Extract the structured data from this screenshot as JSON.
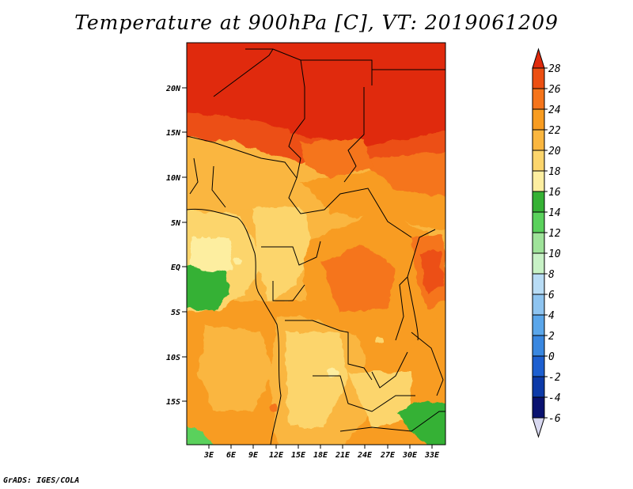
{
  "title": "Temperature at 900hPa [C], VT: 2019061209",
  "credit": "GrADS: IGES/COLA",
  "map": {
    "lat_labels": [
      "20N",
      "15N",
      "10N",
      "5N",
      "EQ",
      "5S",
      "10S",
      "15S"
    ],
    "lon_labels": [
      "3E",
      "6E",
      "9E",
      "12E",
      "15E",
      "18E",
      "21E",
      "24E",
      "27E",
      "30E",
      "33E"
    ]
  },
  "colorbar": {
    "labels": [
      "28",
      "26",
      "24",
      "22",
      "20",
      "18",
      "16",
      "14",
      "12",
      "10",
      "8",
      "6",
      "4",
      "2",
      "0",
      "-2",
      "-4",
      "-6"
    ],
    "colors": [
      "#e02a0c",
      "#ec4f12",
      "#f5741a",
      "#f89c21",
      "#fab63f",
      "#fcd56c",
      "#fdeea0",
      "#35b134",
      "#5ad15c",
      "#9fe39a",
      "#c8f2c6",
      "#b8dcf5",
      "#8ec4f0",
      "#5aa6ea",
      "#3987e0",
      "#1d5fd0",
      "#0d3aa8",
      "#0a1270",
      "#d8d8f0"
    ]
  },
  "chart_data": {
    "type": "heatmap",
    "variable": "Temperature at 900hPa",
    "units": "C",
    "valid_time": "2019061209",
    "xlabel": "",
    "ylabel": "",
    "lon_ticks": [
      "3E",
      "6E",
      "9E",
      "12E",
      "15E",
      "18E",
      "21E",
      "24E",
      "27E",
      "30E",
      "33E"
    ],
    "lat_ticks": [
      "20N",
      "15N",
      "10N",
      "5N",
      "EQ",
      "5S",
      "10S",
      "15S"
    ],
    "color_levels": [
      -6,
      -4,
      -2,
      0,
      2,
      4,
      6,
      8,
      10,
      12,
      14,
      16,
      18,
      20,
      22,
      24,
      26,
      28
    ]
  }
}
